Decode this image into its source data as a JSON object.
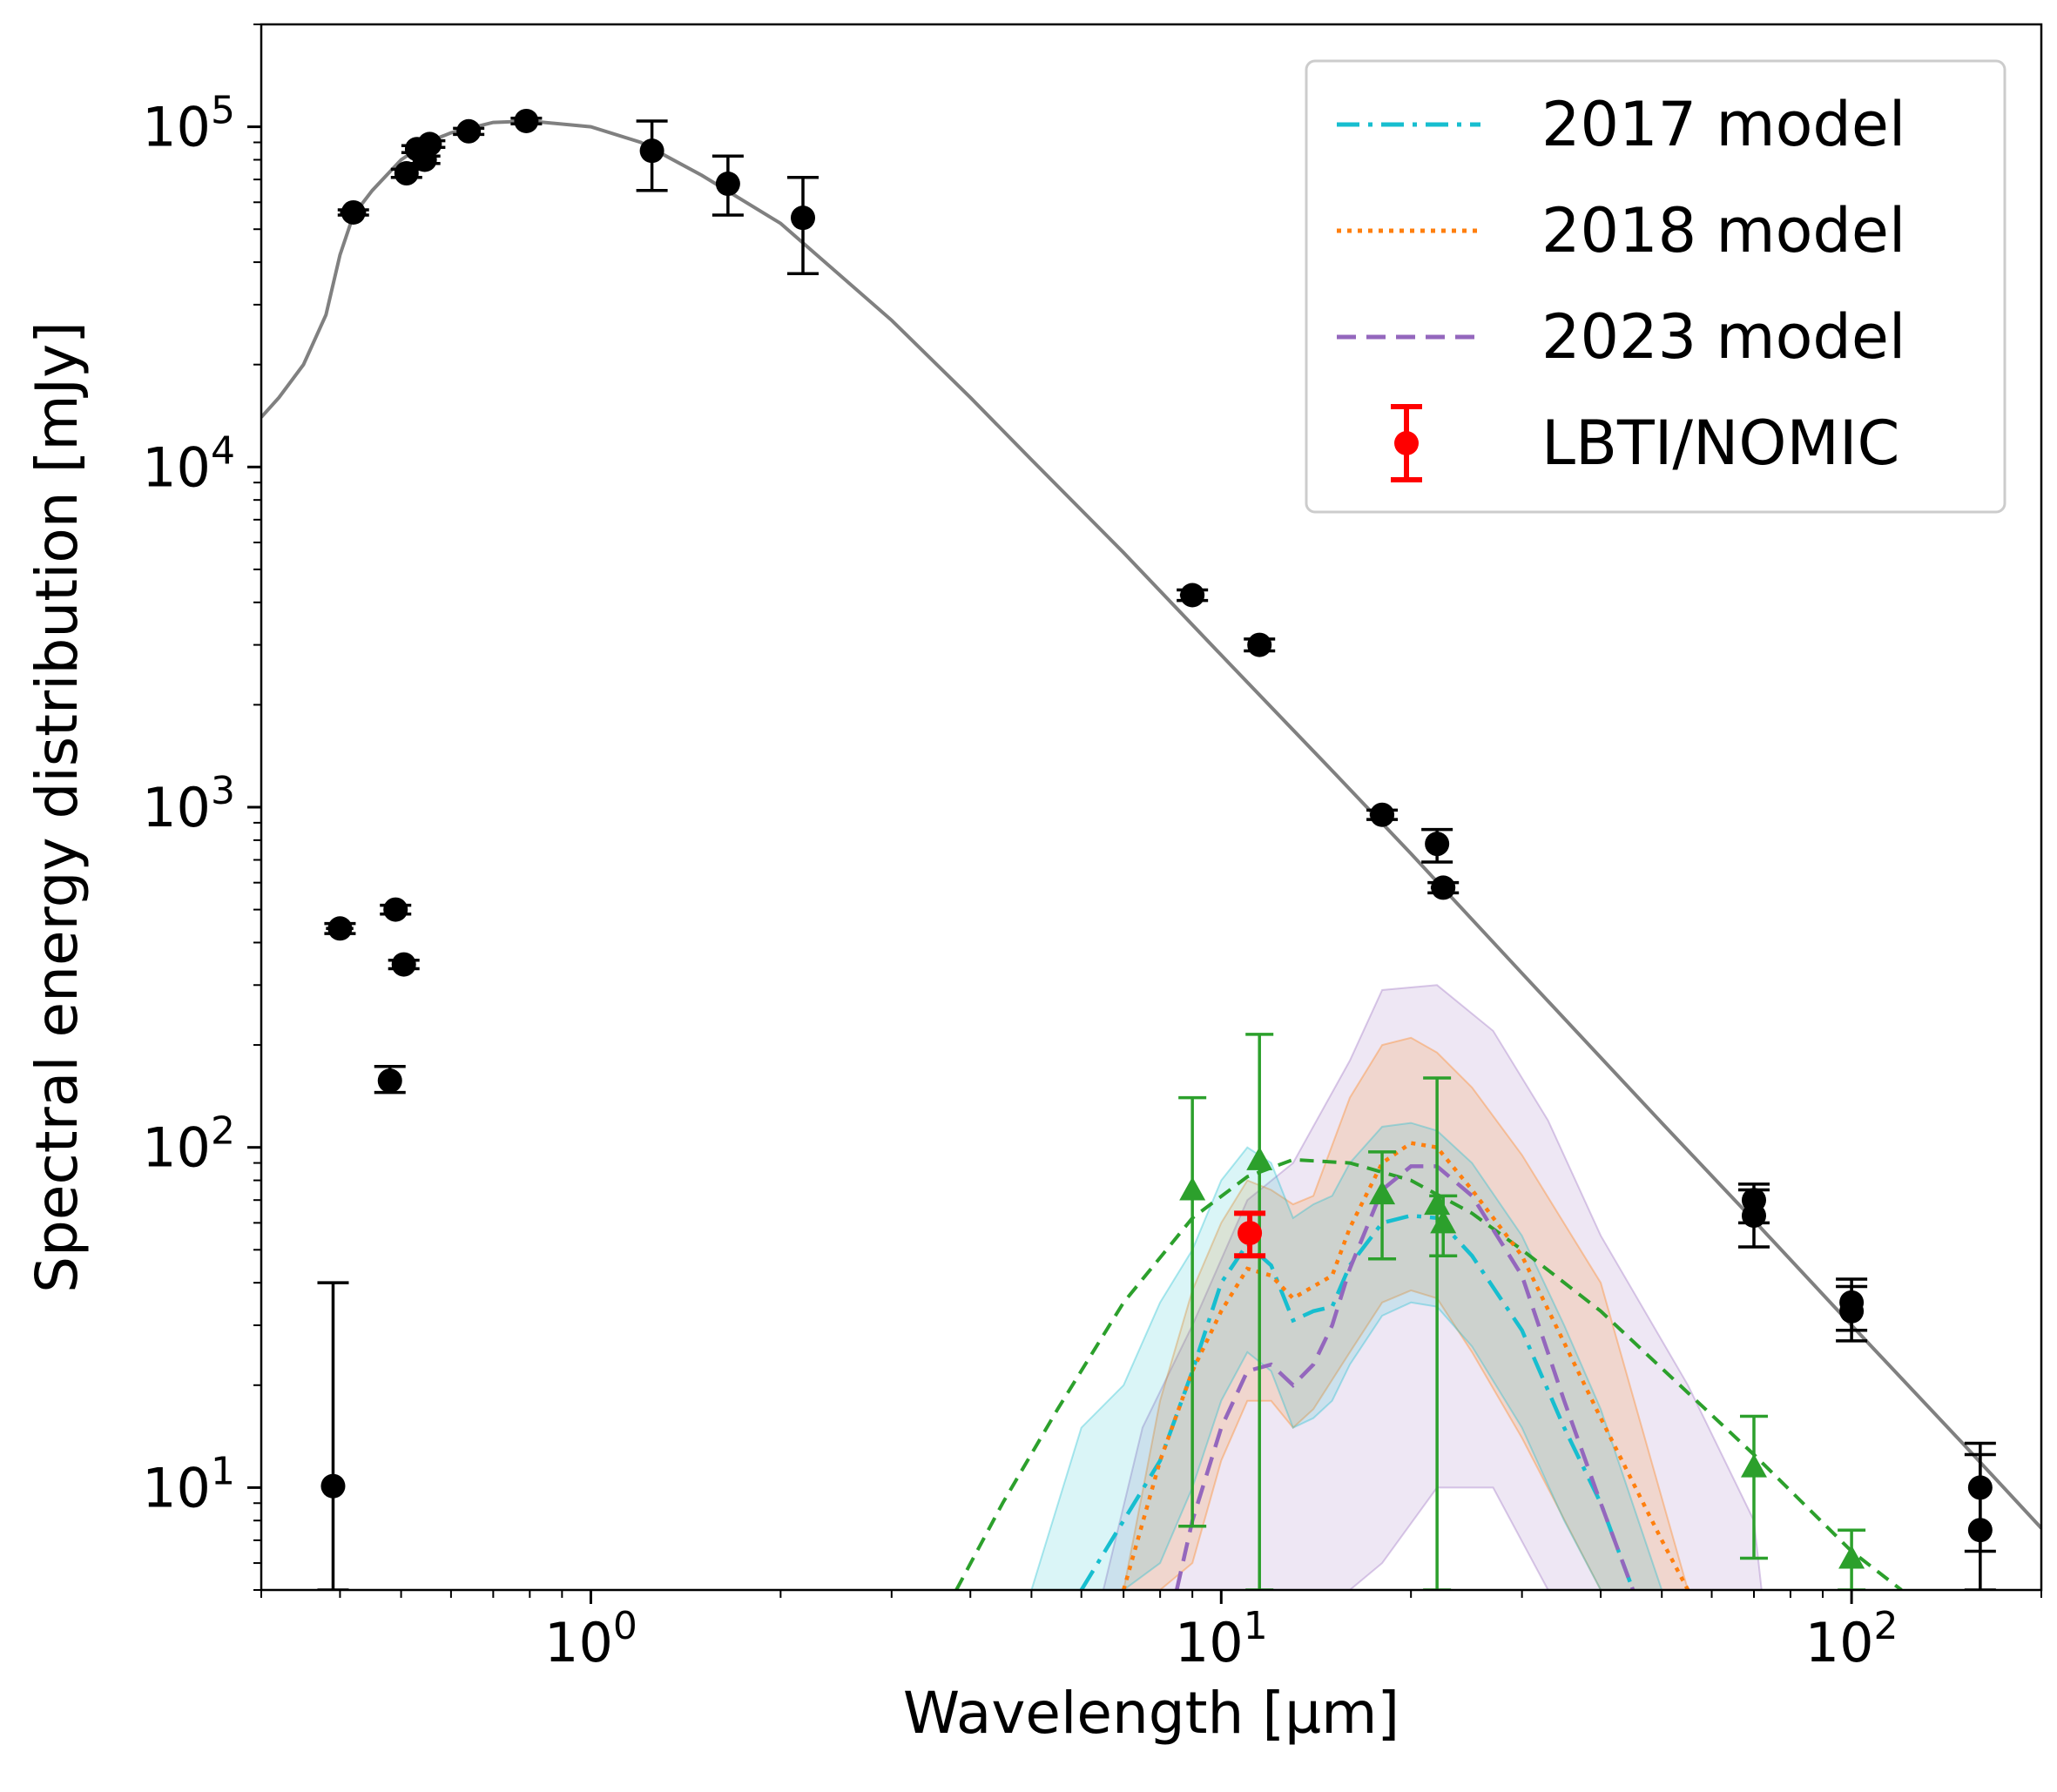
{
  "chart_data": {
    "type": "scatter",
    "xlabel": "Wavelength [µm]",
    "ylabel": "Spectral energy distribution [mJy]",
    "xscale": "log",
    "yscale": "log",
    "xlim": [
      0.3,
      200
    ],
    "ylim": [
      5,
      200000
    ],
    "x_ticks": [
      {
        "value": 1,
        "mantissa": "10",
        "exponent": "0"
      },
      {
        "value": 10,
        "mantissa": "10",
        "exponent": "1"
      },
      {
        "value": 100,
        "mantissa": "10",
        "exponent": "2"
      }
    ],
    "y_ticks": [
      {
        "value": 10,
        "mantissa": "10",
        "exponent": "1"
      },
      {
        "value": 100,
        "mantissa": "10",
        "exponent": "2"
      },
      {
        "value": 1000,
        "mantissa": "10",
        "exponent": "3"
      },
      {
        "value": 10000,
        "mantissa": "10",
        "exponent": "4"
      },
      {
        "value": 100000,
        "mantissa": "10",
        "exponent": "5"
      }
    ],
    "legend": {
      "position": "upper right",
      "entries": [
        {
          "label": "2017 model",
          "style": "dashdot",
          "color": "#17becf"
        },
        {
          "label": "2018 model",
          "style": "dotted",
          "color": "#ff7f0e"
        },
        {
          "label": "2023 model",
          "style": "dashed",
          "color": "#9467bd"
        },
        {
          "label": "LBTI/NOMIC",
          "style": "errorbar",
          "color": "#ff0000"
        }
      ]
    },
    "photosphere": {
      "name": "stellar photosphere",
      "color": "#808080",
      "x": [
        0.3,
        0.32,
        0.35,
        0.38,
        0.4,
        0.42,
        0.45,
        0.5,
        0.55,
        0.6,
        0.7,
        0.8,
        1.0,
        1.2,
        1.5,
        2.0,
        3.0,
        4.0,
        5.0,
        7.0,
        10,
        15,
        20,
        30,
        50,
        70,
        100,
        150,
        200
      ],
      "y": [
        14000,
        16000,
        20000,
        28000,
        42000,
        55000,
        65000,
        80000,
        90000,
        96000,
        103000,
        104000,
        100000,
        90000,
        72000,
        52000,
        27000,
        16000,
        10500,
        5600,
        2800,
        1280,
        730,
        325,
        118,
        61,
        30,
        13.5,
        7.6
      ]
    },
    "photometry": {
      "name": "photometry",
      "color": "#000000",
      "points": [
        {
          "x": 0.42,
          "y": 56000,
          "ylo": 55000,
          "yhi": 57000,
          "xerr": 0.02
        },
        {
          "x": 0.51,
          "y": 73000,
          "ylo": 71000,
          "yhi": 75000,
          "xerr": 0.02
        },
        {
          "x": 0.53,
          "y": 86000,
          "ylo": 84000,
          "yhi": 88000,
          "xerr": 0.02
        },
        {
          "x": 0.545,
          "y": 80000,
          "ylo": 78000,
          "yhi": 82000,
          "xerr": 0.02
        },
        {
          "x": 0.555,
          "y": 89000,
          "ylo": 87000,
          "yhi": 91000,
          "xerr": 0.02
        },
        {
          "x": 0.64,
          "y": 97000,
          "ylo": 95000,
          "yhi": 99000,
          "xerr": 0.02
        },
        {
          "x": 0.79,
          "y": 104000,
          "ylo": 102000,
          "yhi": 106000,
          "xerr": 0.02
        },
        {
          "x": 1.25,
          "y": 85000,
          "ylo": 65000,
          "yhi": 104000
        },
        {
          "x": 1.65,
          "y": 68000,
          "ylo": 55000,
          "yhi": 82000
        },
        {
          "x": 2.17,
          "y": 54000,
          "ylo": 37000,
          "yhi": 71000
        },
        {
          "x": 9.0,
          "y": 4200,
          "ylo": 4050,
          "yhi": 4350,
          "xerr": 0.4
        },
        {
          "x": 11.5,
          "y": 3000,
          "ylo": 2880,
          "yhi": 3120,
          "xerr": 0.4
        },
        {
          "x": 18.0,
          "y": 950,
          "ylo": 920,
          "yhi": 980,
          "xerr": 0.8
        },
        {
          "x": 22.0,
          "y": 780,
          "ylo": 690,
          "yhi": 860
        },
        {
          "x": 22.5,
          "y": 580,
          "ylo": 560,
          "yhi": 600,
          "xerr": 1.0
        },
        {
          "x": 0.4,
          "y": 440,
          "ylo": 425,
          "yhi": 455,
          "xerr": 0.02
        },
        {
          "x": 0.49,
          "y": 500,
          "ylo": 485,
          "yhi": 515,
          "xerr": 0.02
        },
        {
          "x": 0.505,
          "y": 345,
          "ylo": 335,
          "yhi": 355,
          "xerr": 0.02
        },
        {
          "x": 0.48,
          "y": 157,
          "ylo": 145,
          "yhi": 173,
          "xerr": 0.02
        },
        {
          "x": 0.39,
          "y": 10.1,
          "ylo": 5,
          "yhi": 40
        },
        {
          "x": 70,
          "y": 70,
          "ylo": 60,
          "yhi": 78
        },
        {
          "x": 70,
          "y": 63,
          "ylo": 51,
          "yhi": 75
        },
        {
          "x": 100,
          "y": 35,
          "ylo": 29,
          "yhi": 41
        },
        {
          "x": 100,
          "y": 33,
          "ylo": 27,
          "yhi": 39
        },
        {
          "x": 160,
          "y": 10,
          "ylo": 6.5,
          "yhi": 13.5
        },
        {
          "x": 160,
          "y": 7.5,
          "ylo": 5,
          "yhi": 12.5
        }
      ]
    },
    "excess": {
      "name": "infrared excess",
      "color": "#2ca02c",
      "points": [
        {
          "x": 9.0,
          "y": 75,
          "ylo": 7.7,
          "yhi": 140
        },
        {
          "x": 11.5,
          "y": 92,
          "ylo": 5,
          "yhi": 215
        },
        {
          "x": 18.0,
          "y": 73,
          "ylo": 47,
          "yhi": 97
        },
        {
          "x": 22.0,
          "y": 68,
          "ylo": 5,
          "yhi": 160
        },
        {
          "x": 22.5,
          "y": 60,
          "ylo": 48,
          "yhi": 72
        },
        {
          "x": 70,
          "y": 11.5,
          "ylo": 6.2,
          "yhi": 16.2
        },
        {
          "x": 100,
          "y": 6.2,
          "ylo": 5,
          "yhi": 7.5
        }
      ]
    },
    "blackbody": {
      "name": "blackbody fit",
      "color": "#2ca02c",
      "x": [
        3.8,
        4.5,
        5.5,
        7,
        9,
        11,
        13,
        16,
        20,
        25,
        30,
        40,
        55,
        70,
        100,
        120
      ],
      "y": [
        5,
        9,
        17,
        35,
        62,
        82,
        92,
        90,
        80,
        64,
        50,
        33,
        19,
        12.5,
        6.5,
        5
      ]
    },
    "nomic": {
      "label": "LBTI/NOMIC",
      "color": "#ff0000",
      "x": 11.1,
      "y": 56,
      "ylo": 48,
      "yhi": 64
    },
    "models": [
      {
        "label": "2017 model",
        "color": "#17becf",
        "style": "dashdot",
        "x": [
          6.0,
          7.0,
          8.0,
          9.0,
          10.0,
          11.0,
          12.0,
          13.0,
          14.0,
          15.0,
          16.0,
          18.0,
          20.0,
          22.0,
          25.0,
          30.0,
          35.0,
          40.0,
          45.0
        ],
        "y": [
          5,
          8,
          12,
          22,
          40,
          52,
          45,
          31,
          33,
          34,
          45,
          60,
          63,
          62,
          48,
          29,
          15,
          9,
          5
        ]
      },
      {
        "label": "2018 model",
        "color": "#ff7f0e",
        "style": "dotted",
        "x": [
          7.0,
          8.0,
          9.0,
          10.0,
          11.0,
          12.0,
          13.0,
          14.0,
          15.0,
          16.0,
          18.0,
          20.0,
          22.0,
          25.0,
          30.0,
          40.0,
          50.0,
          55.0
        ],
        "y": [
          5,
          12,
          22,
          33,
          44,
          42,
          36,
          39,
          42,
          58,
          90,
          103,
          100,
          75,
          48,
          16,
          7,
          5
        ]
      },
      {
        "label": "2023 model",
        "color": "#9467bd",
        "style": "dashed",
        "x": [
          8.5,
          9.0,
          10.0,
          11.0,
          12.0,
          13.0,
          14.0,
          15.0,
          16.0,
          18.0,
          20.0,
          22.0,
          25.0,
          30.0,
          35.0,
          40.0,
          45.0
        ],
        "y": [
          5,
          8,
          15,
          22,
          23,
          20,
          23,
          30,
          44,
          75,
          88,
          88,
          72,
          42,
          18,
          9,
          5
        ]
      }
    ],
    "bands": [
      {
        "label": "2023 model",
        "color": "#9467bd",
        "x": [
          6.5,
          7.5,
          9,
          11,
          13,
          16,
          18,
          22,
          27,
          33,
          40,
          55,
          70,
          72
        ],
        "lo": [
          5,
          5,
          5,
          5,
          5,
          5,
          6,
          10,
          10,
          5,
          5,
          5,
          5,
          5
        ],
        "hi": [
          5,
          15,
          30,
          70,
          90,
          180,
          290,
          300,
          220,
          120,
          55,
          20,
          8,
          5
        ]
      },
      {
        "label": "2018 model",
        "color": "#ff7f0e",
        "x": [
          7,
          8,
          9,
          10,
          11,
          12,
          13,
          14,
          16,
          18,
          20,
          22,
          25,
          30,
          40,
          55
        ],
        "lo": [
          5,
          5,
          6,
          12,
          18,
          18,
          15,
          17,
          25,
          35,
          38,
          36,
          25,
          14,
          5,
          5
        ],
        "hi": [
          5,
          18,
          38,
          60,
          80,
          75,
          68,
          72,
          140,
          200,
          210,
          190,
          150,
          95,
          40,
          5
        ]
      },
      {
        "label": "2017 model",
        "color": "#17becf",
        "x": [
          5,
          6,
          7,
          8,
          9,
          10,
          11,
          12,
          13,
          14,
          15,
          16,
          18,
          20,
          22,
          25,
          30,
          35,
          40,
          50
        ],
        "lo": [
          5,
          5,
          5,
          6,
          10,
          18,
          25,
          22,
          15,
          16,
          18,
          23,
          32,
          35,
          34,
          26,
          15,
          8,
          5,
          5
        ],
        "hi": [
          5,
          15,
          20,
          35,
          50,
          80,
          100,
          90,
          62,
          68,
          72,
          90,
          115,
          118,
          112,
          90,
          55,
          30,
          17,
          5
        ]
      }
    ]
  }
}
